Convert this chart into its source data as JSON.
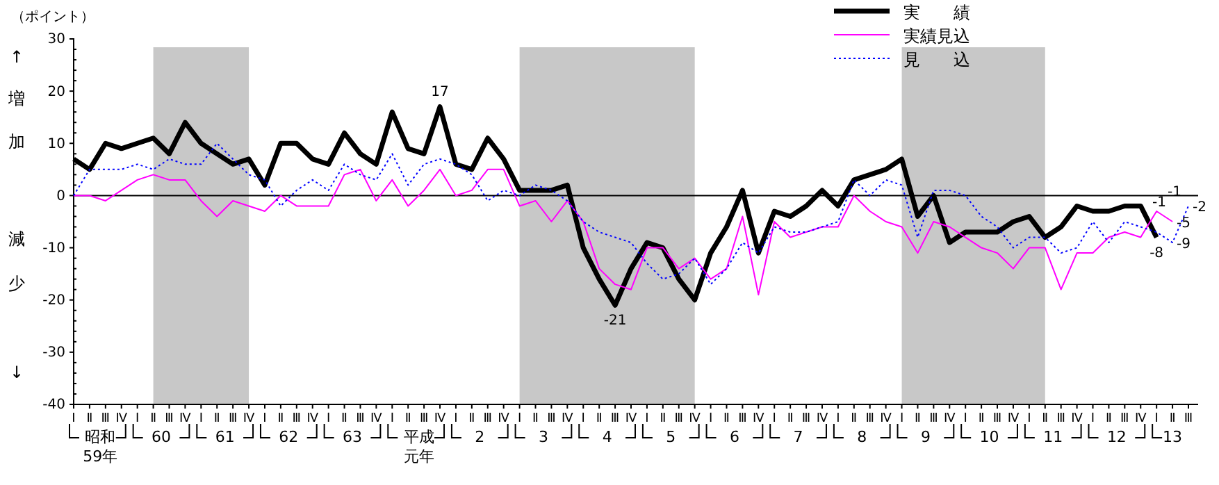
{
  "chart_data": {
    "type": "line",
    "categories": [
      "Ⅰ",
      "Ⅱ",
      "Ⅲ",
      "Ⅳ",
      "Ⅰ",
      "Ⅱ",
      "Ⅲ",
      "Ⅳ",
      "Ⅰ",
      "Ⅱ",
      "Ⅲ",
      "Ⅳ",
      "Ⅰ",
      "Ⅱ",
      "Ⅲ",
      "Ⅳ",
      "Ⅰ",
      "Ⅱ",
      "Ⅲ",
      "Ⅳ",
      "Ⅰ",
      "Ⅱ",
      "Ⅲ",
      "Ⅳ",
      "Ⅰ",
      "Ⅱ",
      "Ⅲ",
      "Ⅳ",
      "Ⅰ",
      "Ⅱ",
      "Ⅲ",
      "Ⅳ",
      "Ⅰ",
      "Ⅱ",
      "Ⅲ",
      "Ⅳ",
      "Ⅰ",
      "Ⅱ",
      "Ⅲ",
      "Ⅳ",
      "Ⅰ",
      "Ⅱ",
      "Ⅲ",
      "Ⅳ",
      "Ⅰ",
      "Ⅱ",
      "Ⅲ",
      "Ⅳ",
      "Ⅰ",
      "Ⅱ",
      "Ⅲ",
      "Ⅳ",
      "Ⅰ",
      "Ⅱ",
      "Ⅲ",
      "Ⅳ",
      "Ⅰ",
      "Ⅱ",
      "Ⅲ",
      "Ⅳ",
      "Ⅰ",
      "Ⅱ",
      "Ⅲ",
      "Ⅳ",
      "Ⅰ",
      "Ⅱ",
      "Ⅲ",
      "Ⅳ",
      "Ⅰ",
      "Ⅱ",
      "Ⅲ"
    ],
    "ylabel": "（ポイント）",
    "ylim": [
      -40,
      30
    ],
    "yticks": [
      -40,
      -30,
      -20,
      -10,
      0,
      10,
      20,
      30
    ],
    "legend": "top right",
    "ref_lines": [
      {
        "axis": "y",
        "value": 0,
        "color": "#000000"
      }
    ],
    "annotations": [
      {
        "text": "-1",
        "y": 1
      },
      {
        "text": "-1",
        "y": -1
      },
      "↑",
      "増",
      "加",
      "減",
      "少",
      "↓",
      "昭和59年",
      "60",
      "61",
      "62",
      "63",
      "平成元年",
      "2",
      "3",
      "4",
      "5",
      "6",
      "7",
      "8",
      "9",
      "10",
      "11",
      "12",
      "13"
    ],
    "series": [
      {
        "name": "実　　績",
        "color": "#000000",
        "line_style": "solid",
        "values": [
          7,
          5,
          10,
          9,
          10,
          11,
          8,
          14,
          10,
          8,
          6,
          7,
          2,
          10,
          10,
          7,
          6,
          12,
          8,
          6,
          16,
          9,
          8,
          17,
          6,
          5,
          11,
          7,
          1,
          1,
          1,
          2,
          -10,
          -16,
          -21,
          -14,
          -9,
          -10,
          -16,
          -20,
          -11,
          -6,
          1,
          -11,
          -3,
          -4,
          -2,
          1,
          -2,
          3,
          4,
          5,
          7,
          -4,
          0,
          -9,
          -7,
          -7,
          -7,
          -5,
          -4,
          -8,
          -6,
          -2,
          -3,
          -3,
          -2,
          -2,
          -8,
          null,
          null
        ],
        "value_labels": [
          null,
          null,
          null,
          null,
          null,
          null,
          null,
          null,
          null,
          null,
          null,
          null,
          null,
          null,
          null,
          null,
          null,
          null,
          null,
          null,
          null,
          null,
          null,
          "17",
          null,
          null,
          null,
          null,
          null,
          null,
          null,
          null,
          null,
          null,
          "-21",
          null,
          null,
          null,
          null,
          null,
          null,
          null,
          null,
          null,
          null,
          null,
          null,
          null,
          null,
          null,
          null,
          null,
          null,
          null,
          null,
          null,
          null,
          null,
          null,
          null,
          null,
          null,
          null,
          null,
          null,
          null,
          null,
          null,
          "-8",
          null,
          null
        ]
      },
      {
        "name": "実績見込",
        "color": "#ff00ff",
        "line_style": "solid",
        "values": [
          0,
          0,
          -1,
          1,
          3,
          4,
          3,
          3,
          -1,
          -4,
          -1,
          -2,
          -3,
          0,
          -2,
          -2,
          -2,
          4,
          5,
          -1,
          3,
          -2,
          1,
          5,
          0,
          1,
          5,
          5,
          -2,
          -1,
          -5,
          -1,
          -5,
          -14,
          -17,
          -18,
          -10,
          -10,
          -14,
          -12,
          -16,
          -14,
          -4,
          -19,
          -5,
          -8,
          -7,
          -6,
          -6,
          0,
          -3,
          -5,
          -6,
          -11,
          -5,
          -6,
          -8,
          -10,
          -11,
          -14,
          -10,
          -10,
          -18,
          -11,
          -11,
          -8,
          -7,
          -8,
          -3,
          -5,
          null
        ],
        "value_labels": [
          null,
          null,
          null,
          null,
          null,
          null,
          null,
          null,
          null,
          null,
          null,
          null,
          null,
          null,
          null,
          null,
          null,
          null,
          null,
          null,
          null,
          null,
          null,
          null,
          null,
          null,
          null,
          null,
          null,
          null,
          null,
          null,
          null,
          null,
          null,
          null,
          null,
          null,
          null,
          null,
          null,
          null,
          null,
          null,
          null,
          null,
          null,
          null,
          null,
          null,
          null,
          null,
          null,
          null,
          null,
          null,
          null,
          null,
          null,
          null,
          null,
          null,
          null,
          null,
          null,
          null,
          null,
          null,
          null,
          "-5",
          null
        ]
      },
      {
        "name": "見　　込",
        "color": "#0000ff",
        "line_style": "dotted",
        "values": [
          0,
          5,
          5,
          5,
          6,
          5,
          7,
          6,
          6,
          10,
          7,
          4,
          3,
          -2,
          1,
          3,
          1,
          6,
          4,
          3,
          8,
          2,
          6,
          7,
          6,
          4,
          -1,
          1,
          0,
          2,
          1,
          -1,
          -5,
          -7,
          -8,
          -9,
          -13,
          -16,
          -15,
          -12,
          -17,
          -14,
          -9,
          -11,
          -6,
          -7,
          -7,
          -6,
          -5,
          3,
          0,
          3,
          2,
          -8,
          1,
          1,
          0,
          -4,
          -6,
          -10,
          -8,
          -8,
          -11,
          -10,
          -5,
          -9,
          -5,
          -6,
          -7,
          -9,
          -2
        ],
        "value_labels": [
          null,
          null,
          null,
          null,
          null,
          null,
          null,
          null,
          null,
          null,
          null,
          null,
          null,
          null,
          null,
          null,
          null,
          null,
          null,
          null,
          null,
          null,
          null,
          null,
          null,
          null,
          null,
          null,
          null,
          null,
          null,
          null,
          null,
          null,
          null,
          null,
          null,
          null,
          null,
          null,
          null,
          null,
          null,
          null,
          null,
          null,
          null,
          null,
          null,
          null,
          null,
          null,
          null,
          null,
          null,
          null,
          null,
          null,
          null,
          null,
          null,
          null,
          null,
          null,
          null,
          null,
          null,
          null,
          null,
          "-9",
          "-2"
        ]
      }
    ]
  }
}
